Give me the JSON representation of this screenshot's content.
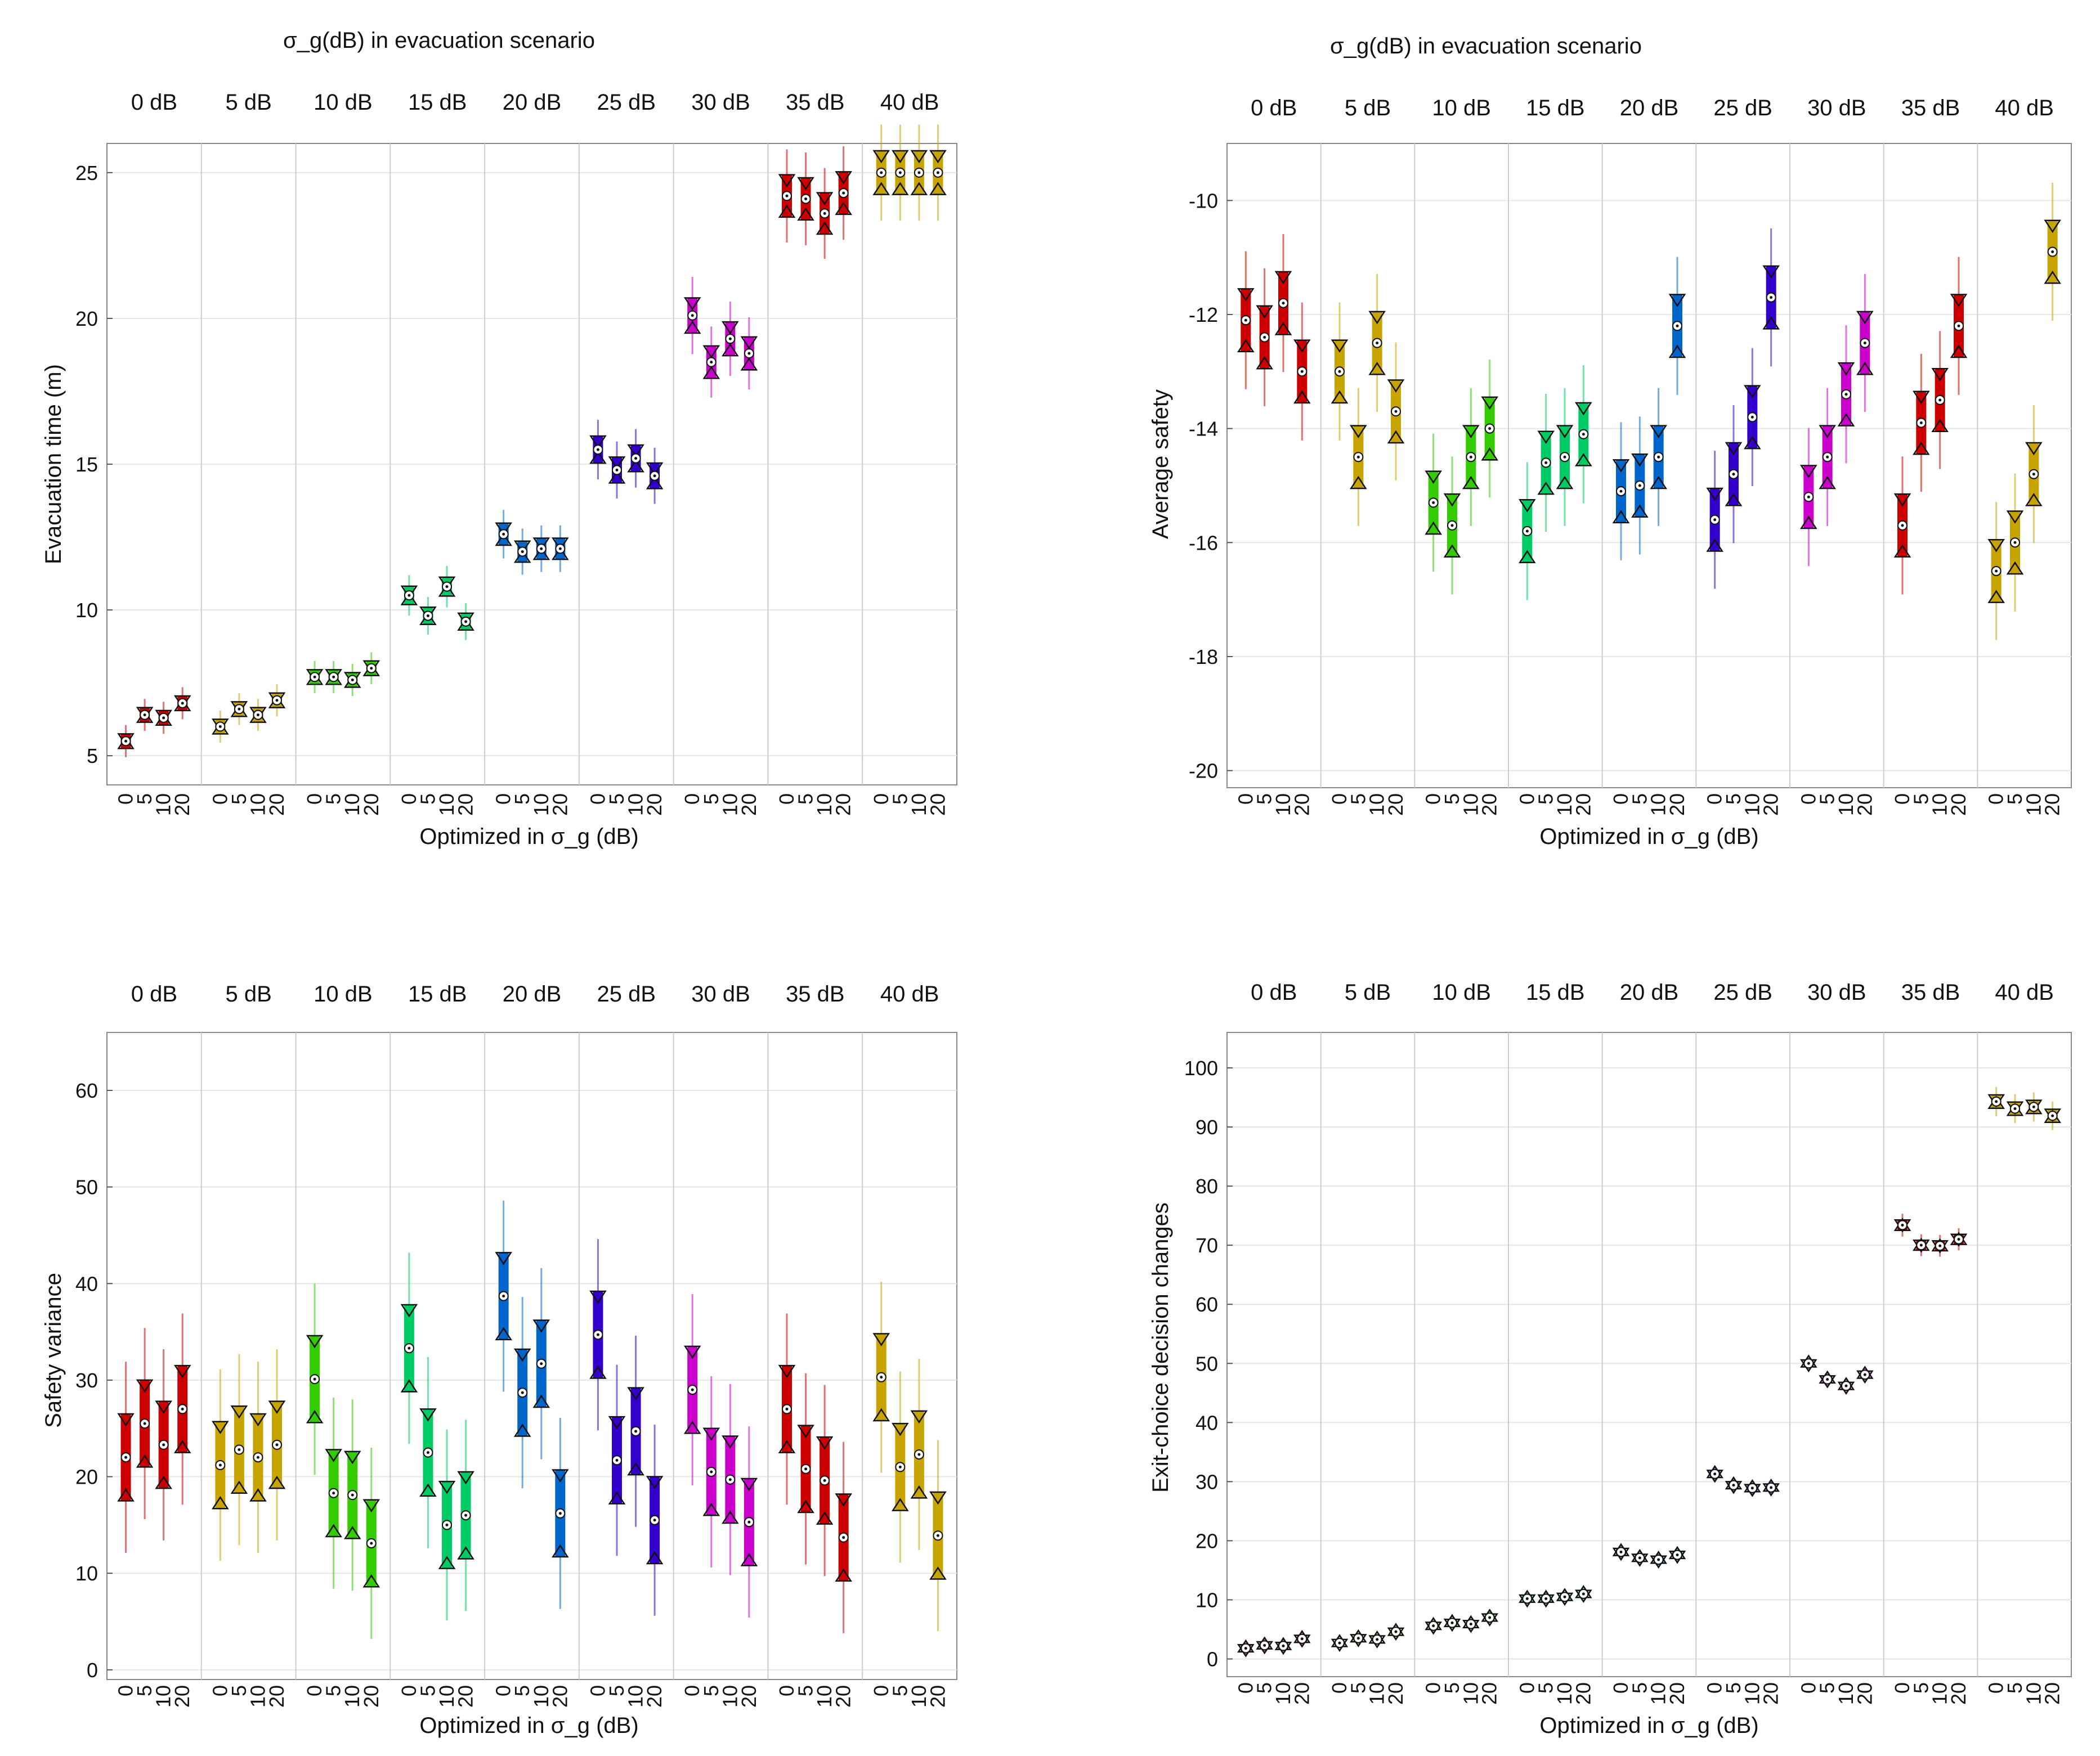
{
  "figure": {
    "shared": {
      "group_labels": [
        "0 dB",
        "5 dB",
        "10 dB",
        "15 dB",
        "20 dB",
        "25 dB",
        "30 dB",
        "35 dB",
        "40 dB"
      ],
      "sub_labels": [
        "0",
        "5",
        "10",
        "20"
      ]
    }
  },
  "chart_data": [
    {
      "type": "box",
      "title": "σ_g(dB) in evacuation scenario",
      "ylabel": "Evacuation time (m)",
      "xlabel": "Optimized in σ_g (dB)",
      "ylim": [
        4,
        26
      ],
      "yticks": [
        5,
        10,
        15,
        20,
        25
      ],
      "groups": [
        "0 dB",
        "5 dB",
        "10 dB",
        "15 dB",
        "20 dB",
        "25 dB",
        "30 dB",
        "35 dB",
        "40 dB"
      ],
      "categories": [
        "0",
        "5",
        "10",
        "20"
      ],
      "colors": [
        "#cc0000",
        "#c8a400",
        "#33cc00",
        "#00cc66",
        "#0066cc",
        "#3300cc",
        "#cc00cc",
        "#cc0000",
        "#c8a400"
      ],
      "medians": [
        [
          5.5,
          6.4,
          6.3,
          6.8
        ],
        [
          6.0,
          6.6,
          6.4,
          6.9
        ],
        [
          7.7,
          7.7,
          7.6,
          8.0
        ],
        [
          10.5,
          9.8,
          10.8,
          9.6
        ],
        [
          12.6,
          12.0,
          12.1,
          12.1
        ],
        [
          15.5,
          14.8,
          15.2,
          14.6
        ],
        [
          20.1,
          18.5,
          19.3,
          18.8
        ],
        [
          24.2,
          24.1,
          23.6,
          24.3
        ],
        [
          25.0,
          25.0,
          25.0,
          25.0
        ]
      ]
    },
    {
      "type": "box",
      "title": "σ_g(dB) in evacuation scenario",
      "ylabel": "Average safety",
      "xlabel": "Optimized in σ_g (dB)",
      "ylim": [
        -20.3,
        -9.0
      ],
      "yticks": [
        -20,
        -18,
        -16,
        -14,
        -12,
        -10
      ],
      "groups": [
        "0 dB",
        "5 dB",
        "10 dB",
        "15 dB",
        "20 dB",
        "25 dB",
        "30 dB",
        "35 dB",
        "40 dB"
      ],
      "categories": [
        "0",
        "5",
        "10",
        "20"
      ],
      "colors": [
        "#cc0000",
        "#c8a400",
        "#33cc00",
        "#00cc66",
        "#0066cc",
        "#3300cc",
        "#cc00cc",
        "#cc0000",
        "#c8a400"
      ],
      "medians": [
        [
          -12.1,
          -12.4,
          -11.8,
          -13.0
        ],
        [
          -13.0,
          -14.5,
          -12.5,
          -13.7
        ],
        [
          -15.3,
          -15.7,
          -14.5,
          -14.0
        ],
        [
          -15.8,
          -14.6,
          -14.5,
          -14.1
        ],
        [
          -15.1,
          -15.0,
          -14.5,
          -12.2
        ],
        [
          -15.6,
          -14.8,
          -13.8,
          -11.7
        ],
        [
          -15.2,
          -14.5,
          -13.4,
          -12.5
        ],
        [
          -15.7,
          -13.9,
          -13.5,
          -12.2
        ],
        [
          -16.5,
          -16.0,
          -14.8,
          -10.9
        ]
      ]
    },
    {
      "type": "box",
      "title": "",
      "ylabel": "Safety variance",
      "xlabel": "Optimized in σ_g (dB)",
      "ylim": [
        -1,
        66
      ],
      "yticks": [
        0,
        10,
        20,
        30,
        40,
        50,
        60
      ],
      "groups": [
        "0 dB",
        "5 dB",
        "10 dB",
        "15 dB",
        "20 dB",
        "25 dB",
        "30 dB",
        "35 dB",
        "40 dB"
      ],
      "categories": [
        "0",
        "5",
        "10",
        "20"
      ],
      "colors": [
        "#cc0000",
        "#c8a400",
        "#33cc00",
        "#00cc66",
        "#0066cc",
        "#3300cc",
        "#cc00cc",
        "#cc0000",
        "#c8a400"
      ],
      "medians": [
        [
          22.0,
          25.5,
          23.3,
          27.0
        ],
        [
          21.2,
          22.8,
          22.0,
          23.3
        ],
        [
          30.1,
          18.3,
          18.1,
          13.1
        ],
        [
          33.3,
          22.5,
          15.0,
          16.0
        ],
        [
          38.7,
          28.7,
          31.7,
          16.2
        ],
        [
          34.7,
          21.7,
          24.7,
          15.5
        ],
        [
          29.0,
          20.5,
          19.7,
          15.3
        ],
        [
          27.0,
          20.8,
          19.6,
          13.7
        ],
        [
          30.3,
          21.0,
          22.3,
          13.9
        ]
      ]
    },
    {
      "type": "box",
      "title": "",
      "ylabel": "Exit-choice decision changes",
      "xlabel": "Optimized in σ_g (dB)",
      "ylim": [
        -3,
        106
      ],
      "yticks": [
        0,
        10,
        20,
        30,
        40,
        50,
        60,
        70,
        80,
        90,
        100
      ],
      "groups": [
        "0 dB",
        "5 dB",
        "10 dB",
        "15 dB",
        "20 dB",
        "25 dB",
        "30 dB",
        "35 dB",
        "40 dB"
      ],
      "categories": [
        "0",
        "5",
        "10",
        "20"
      ],
      "colors": [
        "#cc0000",
        "#c8a400",
        "#33cc00",
        "#00cc66",
        "#0066cc",
        "#3300cc",
        "#cc00cc",
        "#cc0000",
        "#c8a400"
      ],
      "medians": [
        [
          1.8,
          2.3,
          2.2,
          3.4
        ],
        [
          2.7,
          3.5,
          3.3,
          4.6
        ],
        [
          5.6,
          6.1,
          5.9,
          7.0
        ],
        [
          10.2,
          10.2,
          10.5,
          11.0
        ],
        [
          18.1,
          17.1,
          16.8,
          17.6
        ],
        [
          31.3,
          29.4,
          28.9,
          29.0
        ],
        [
          50.0,
          47.3,
          46.2,
          48.1
        ],
        [
          73.4,
          70.0,
          69.9,
          71.0
        ],
        [
          94.3,
          93.1,
          93.4,
          91.9
        ]
      ]
    }
  ]
}
